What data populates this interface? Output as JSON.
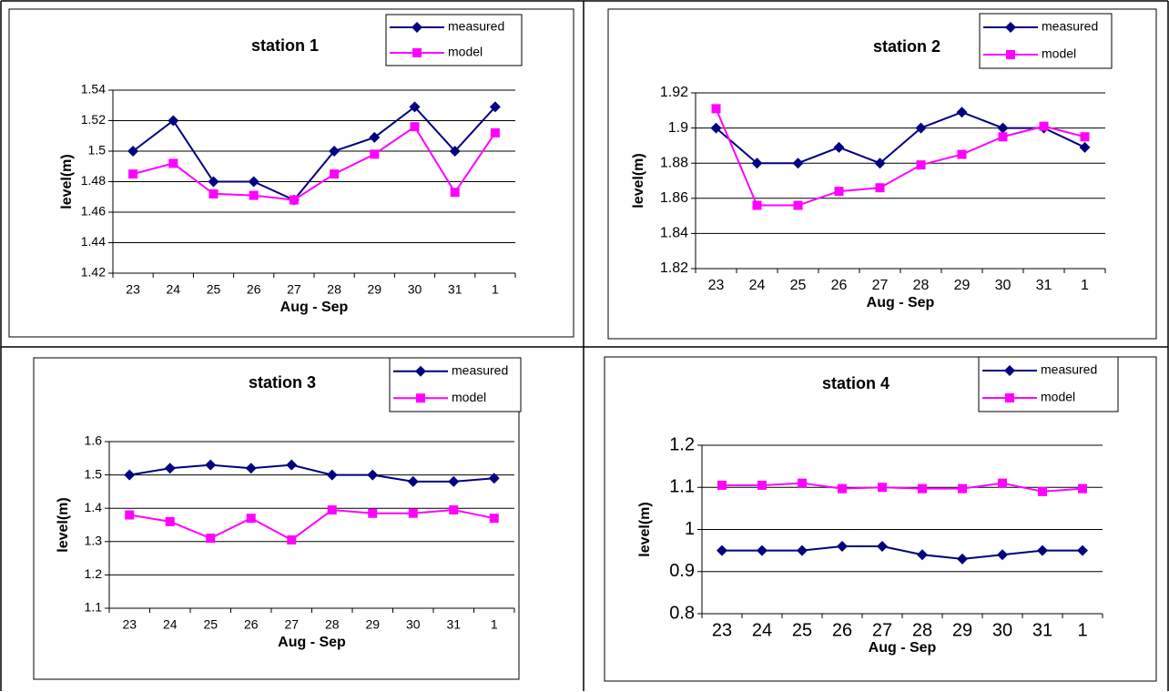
{
  "chart_data": [
    {
      "type": "line",
      "title": "station 1",
      "x_label": "Aug - Sep",
      "y_label": "level(m)",
      "categories": [
        "23",
        "24",
        "25",
        "26",
        "27",
        "28",
        "29",
        "30",
        "31",
        "1"
      ],
      "ylim": [
        1.42,
        1.54
      ],
      "yticks": [
        1.42,
        1.44,
        1.46,
        1.48,
        1.5,
        1.52,
        1.54
      ],
      "grid": true,
      "legend": "top-right",
      "series": [
        {
          "name": "measured",
          "color": "#000080",
          "marker": "diamond",
          "values": [
            1.5,
            1.52,
            1.48,
            1.48,
            1.468,
            1.5,
            1.509,
            1.529,
            1.5,
            1.529
          ]
        },
        {
          "name": "model",
          "color": "#ff00ff",
          "marker": "square",
          "values": [
            1.485,
            1.492,
            1.472,
            1.471,
            1.468,
            1.485,
            1.498,
            1.516,
            1.473,
            1.512
          ]
        }
      ]
    },
    {
      "type": "line",
      "title": "station 2",
      "x_label": "Aug - Sep",
      "y_label": "level(m)",
      "categories": [
        "23",
        "24",
        "25",
        "26",
        "27",
        "28",
        "29",
        "30",
        "31",
        "1"
      ],
      "ylim": [
        1.82,
        1.92
      ],
      "yticks": [
        1.82,
        1.84,
        1.86,
        1.88,
        1.9,
        1.92
      ],
      "grid": true,
      "legend": "top-right",
      "series": [
        {
          "name": "measured",
          "color": "#000080",
          "marker": "diamond",
          "values": [
            1.9,
            1.88,
            1.88,
            1.889,
            1.88,
            1.9,
            1.909,
            1.9,
            1.9,
            1.889
          ]
        },
        {
          "name": "model",
          "color": "#ff00ff",
          "marker": "square",
          "values": [
            1.911,
            1.856,
            1.856,
            1.864,
            1.866,
            1.879,
            1.885,
            1.895,
            1.901,
            1.895
          ]
        }
      ]
    },
    {
      "type": "line",
      "title": "station 3",
      "x_label": "Aug - Sep",
      "y_label": "level(m)",
      "categories": [
        "23",
        "24",
        "25",
        "26",
        "27",
        "28",
        "29",
        "30",
        "31",
        "1"
      ],
      "ylim": [
        1.1,
        1.6
      ],
      "yticks": [
        1.1,
        1.2,
        1.3,
        1.4,
        1.5,
        1.6
      ],
      "grid": true,
      "legend": "top-right",
      "series": [
        {
          "name": "measured",
          "color": "#000080",
          "marker": "diamond",
          "values": [
            1.5,
            1.52,
            1.53,
            1.52,
            1.53,
            1.5,
            1.5,
            1.48,
            1.48,
            1.49
          ]
        },
        {
          "name": "model",
          "color": "#ff00ff",
          "marker": "square",
          "values": [
            1.38,
            1.36,
            1.31,
            1.37,
            1.305,
            1.395,
            1.385,
            1.385,
            1.395,
            1.37
          ]
        }
      ]
    },
    {
      "type": "line",
      "title": "station 4",
      "x_label": "Aug - Sep",
      "y_label": "level(m)",
      "categories": [
        "23",
        "24",
        "25",
        "26",
        "27",
        "28",
        "29",
        "30",
        "31",
        "1"
      ],
      "ylim": [
        0.8,
        1.2
      ],
      "yticks": [
        0.8,
        0.9,
        1,
        1.1,
        1.2
      ],
      "grid": true,
      "legend": "top-right",
      "series": [
        {
          "name": "measured",
          "color": "#000080",
          "marker": "diamond",
          "values": [
            0.95,
            0.95,
            0.95,
            0.96,
            0.96,
            0.94,
            0.93,
            0.94,
            0.95,
            0.95
          ]
        },
        {
          "name": "model",
          "color": "#ff00ff",
          "marker": "square",
          "values": [
            1.105,
            1.105,
            1.11,
            1.097,
            1.1,
            1.097,
            1.097,
            1.11,
            1.09,
            1.097
          ]
        }
      ]
    }
  ]
}
